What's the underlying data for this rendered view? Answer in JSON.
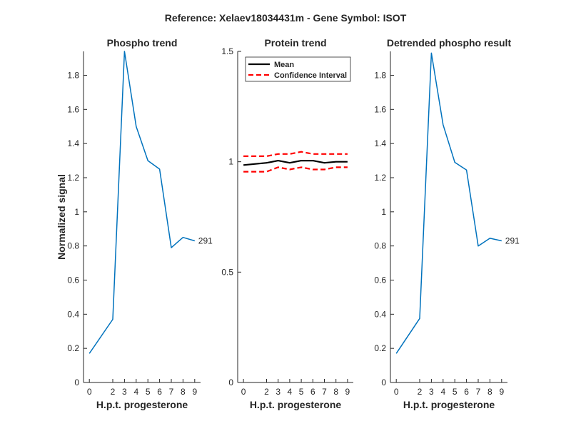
{
  "figure_title": "Reference:  Xelaev18034431m - Gene Symbol:  ISOT",
  "colors": {
    "series": "#0072BD",
    "mean": "#000000",
    "ci": "#FF0000",
    "axis": "#262626"
  },
  "chart_data": [
    {
      "type": "line",
      "title": "Phospho trend",
      "xlabel": "H.p.t. progesterone",
      "ylabel": "Normalized signal",
      "x": [
        0,
        2,
        3,
        4,
        5,
        6,
        7,
        8,
        9
      ],
      "xtick_labels": [
        "0",
        "2",
        "3",
        "4",
        "5",
        "6",
        "7",
        "8",
        "9"
      ],
      "xlim": [
        -0.5,
        9.5
      ],
      "ylim": [
        0,
        1.94
      ],
      "yticks": [
        0,
        0.2,
        0.4,
        0.6,
        0.8,
        1,
        1.2,
        1.4,
        1.6,
        1.8
      ],
      "ytick_labels": [
        "0",
        "0.2",
        "0.4",
        "0.6",
        "0.8",
        "1",
        "1.2",
        "1.4",
        "1.6",
        "1.8"
      ],
      "series": [
        {
          "values": [
            0.17,
            0.37,
            1.94,
            1.5,
            1.3,
            1.25,
            0.79,
            0.85,
            0.83
          ]
        }
      ],
      "annotation": "291"
    },
    {
      "type": "line",
      "title": "Protein trend",
      "xlabel": "H.p.t. progesterone",
      "ylabel": "",
      "x": [
        0,
        2,
        3,
        4,
        5,
        6,
        7,
        8,
        9
      ],
      "xtick_labels": [
        "0",
        "2",
        "3",
        "4",
        "5",
        "6",
        "7",
        "8",
        "9"
      ],
      "xlim": [
        -0.5,
        9.5
      ],
      "ylim": [
        0,
        1.5
      ],
      "yticks": [
        0,
        0.5,
        1,
        1.5
      ],
      "ytick_labels": [
        "0",
        "0.5",
        "1",
        "1.5"
      ],
      "series": [
        {
          "name": "Mean",
          "values": [
            0.985,
            0.995,
            1.005,
            0.995,
            1.005,
            1.005,
            0.995,
            1.0,
            1.0
          ]
        },
        {
          "name": "Confidence Interval",
          "values": [
            1.025,
            1.025,
            1.035,
            1.035,
            1.045,
            1.035,
            1.035,
            1.035,
            1.035
          ]
        },
        {
          "name": "Confidence Interval (lower)",
          "values": [
            0.955,
            0.955,
            0.975,
            0.965,
            0.975,
            0.965,
            0.965,
            0.975,
            0.975
          ]
        }
      ],
      "legend": {
        "placement": "top-left",
        "entries": [
          "Mean",
          "Confidence Interval"
        ]
      }
    },
    {
      "type": "line",
      "title": "Detrended phospho result",
      "xlabel": "H.p.t. progesterone",
      "ylabel": "",
      "x": [
        0,
        2,
        3,
        4,
        5,
        6,
        7,
        8,
        9
      ],
      "xtick_labels": [
        "0",
        "2",
        "3",
        "4",
        "5",
        "6",
        "7",
        "8",
        "9"
      ],
      "xlim": [
        -0.5,
        9.5
      ],
      "ylim": [
        0,
        1.94
      ],
      "yticks": [
        0,
        0.2,
        0.4,
        0.6,
        0.8,
        1,
        1.2,
        1.4,
        1.6,
        1.8
      ],
      "ytick_labels": [
        "0",
        "0.2",
        "0.4",
        "0.6",
        "0.8",
        "1",
        "1.2",
        "1.4",
        "1.6",
        "1.8"
      ],
      "series": [
        {
          "values": [
            0.17,
            0.375,
            1.93,
            1.51,
            1.29,
            1.245,
            0.8,
            0.845,
            0.83
          ]
        }
      ],
      "annotation": "291"
    }
  ]
}
